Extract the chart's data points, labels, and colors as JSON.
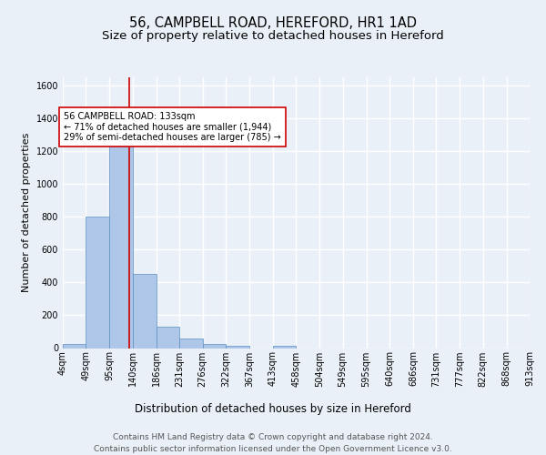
{
  "title1": "56, CAMPBELL ROAD, HEREFORD, HR1 1AD",
  "title2": "Size of property relative to detached houses in Hereford",
  "xlabel": "Distribution of detached houses by size in Hereford",
  "ylabel": "Number of detached properties",
  "bar_values": [
    25,
    800,
    1240,
    450,
    130,
    60,
    25,
    15,
    0,
    15,
    0,
    0,
    0,
    0,
    0,
    0,
    0,
    0,
    0,
    0
  ],
  "bin_edges": [
    4,
    49,
    95,
    140,
    186,
    231,
    276,
    322,
    367,
    413,
    458,
    504,
    549,
    595,
    640,
    686,
    731,
    777,
    822,
    868,
    913
  ],
  "tick_labels": [
    "4sqm",
    "49sqm",
    "95sqm",
    "140sqm",
    "186sqm",
    "231sqm",
    "276sqm",
    "322sqm",
    "367sqm",
    "413sqm",
    "458sqm",
    "504sqm",
    "549sqm",
    "595sqm",
    "640sqm",
    "686sqm",
    "731sqm",
    "777sqm",
    "822sqm",
    "868sqm",
    "913sqm"
  ],
  "bar_color": "#aec6e8",
  "bar_edge_color": "#5a8fc2",
  "vline_x": 133,
  "vline_color": "#cc0000",
  "annotation_text": "56 CAMPBELL ROAD: 133sqm\n← 71% of detached houses are smaller (1,944)\n29% of semi-detached houses are larger (785) →",
  "annotation_box_color": "#ffffff",
  "annotation_box_edge": "#cc0000",
  "ylim": [
    0,
    1650
  ],
  "yticks": [
    0,
    200,
    400,
    600,
    800,
    1000,
    1200,
    1400,
    1600
  ],
  "bg_color": "#eaf0f8",
  "plot_bg_color": "#eaf0f8",
  "grid_color": "#ffffff",
  "footer_text": "Contains HM Land Registry data © Crown copyright and database right 2024.\nContains public sector information licensed under the Open Government Licence v3.0.",
  "title1_fontsize": 10.5,
  "title2_fontsize": 9.5,
  "xlabel_fontsize": 8.5,
  "ylabel_fontsize": 8,
  "tick_fontsize": 7,
  "footer_fontsize": 6.5,
  "annotation_fontsize": 7
}
